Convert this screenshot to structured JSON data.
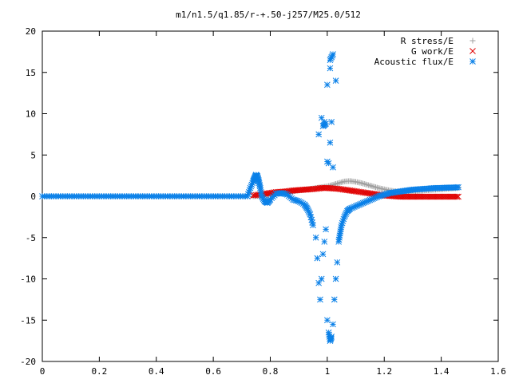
{
  "chart_data": {
    "type": "scatter",
    "title": "m1/n1.5/q1.85/r-+.50-j257/M25.0/512",
    "xlabel": "",
    "ylabel": "",
    "xlim": [
      0,
      1.6
    ],
    "ylim": [
      -20,
      20
    ],
    "x_ticks": [
      0,
      0.2,
      0.4,
      0.6,
      0.8,
      1,
      1.2,
      1.4,
      1.6
    ],
    "x_tick_labels": [
      "0",
      "0.2",
      "0.4",
      "0.6",
      "0.8",
      "1",
      "1.2",
      "1.4",
      "1.6"
    ],
    "y_ticks": [
      -20,
      -15,
      -10,
      -5,
      0,
      5,
      10,
      15,
      20
    ],
    "y_tick_labels": [
      "-20",
      "-15",
      "-10",
      "-5",
      "0",
      "5",
      "10",
      "15",
      "20"
    ],
    "grid": false,
    "legend_position": "top-right",
    "series": [
      {
        "name": "R stress/E",
        "marker": "plus",
        "color": "#a0a0a0",
        "x": [
          0.74,
          0.76,
          0.78,
          0.8,
          0.82,
          0.84,
          0.86,
          0.88,
          0.9,
          0.92,
          0.94,
          0.96,
          0.98,
          1.0,
          1.02,
          1.04,
          1.06,
          1.08,
          1.1,
          1.12,
          1.14,
          1.16,
          1.18,
          1.2,
          1.22,
          1.24,
          1.26,
          1.28,
          1.3,
          1.32,
          1.34,
          1.36,
          1.38,
          1.4,
          1.42,
          1.44,
          1.46
        ],
        "y": [
          0.0,
          0.05,
          0.1,
          0.2,
          0.3,
          0.4,
          0.5,
          0.6,
          0.7,
          0.8,
          0.9,
          1.0,
          1.1,
          1.2,
          1.4,
          1.6,
          1.8,
          1.85,
          1.75,
          1.6,
          1.4,
          1.2,
          1.0,
          0.85,
          0.7,
          0.6,
          0.55,
          0.55,
          0.6,
          0.65,
          0.7,
          0.75,
          0.8,
          0.85,
          0.9,
          0.95,
          1.0
        ]
      },
      {
        "name": "G work/E",
        "marker": "cross",
        "color": "#e00000",
        "x": [
          0.74,
          0.76,
          0.78,
          0.8,
          0.82,
          0.84,
          0.86,
          0.88,
          0.9,
          0.92,
          0.94,
          0.96,
          0.98,
          1.0,
          1.02,
          1.04,
          1.06,
          1.08,
          1.1,
          1.12,
          1.14,
          1.16,
          1.18,
          1.2,
          1.22,
          1.24,
          1.26,
          1.28,
          1.3,
          1.32,
          1.34,
          1.36,
          1.38,
          1.4,
          1.42,
          1.44,
          1.46
        ],
        "y": [
          0.1,
          0.2,
          0.3,
          0.4,
          0.5,
          0.55,
          0.6,
          0.7,
          0.75,
          0.8,
          0.85,
          0.9,
          1.0,
          1.0,
          0.95,
          0.9,
          0.8,
          0.7,
          0.6,
          0.5,
          0.4,
          0.3,
          0.2,
          0.1,
          0.05,
          0.0,
          -0.05,
          -0.05,
          -0.05,
          -0.05,
          -0.05,
          -0.05,
          -0.05,
          -0.05,
          -0.05,
          -0.05,
          -0.05
        ]
      },
      {
        "name": "Acoustic flux/E",
        "marker": "star",
        "color": "#0a80e8",
        "x": [
          0.72,
          0.73,
          0.74,
          0.745,
          0.75,
          0.755,
          0.76,
          0.765,
          0.77,
          0.78,
          0.79,
          0.8,
          0.82,
          0.84,
          0.86,
          0.88,
          0.9,
          0.92,
          0.93,
          0.94,
          0.95,
          0.96,
          0.965,
          0.97,
          0.975,
          0.98,
          0.985,
          0.99,
          0.995,
          1.0,
          1.005,
          1.01,
          1.015,
          1.02,
          1.025,
          1.03,
          1.035,
          1.04,
          1.045,
          1.05,
          1.06,
          1.07,
          1.08,
          1.1,
          1.12,
          1.14,
          1.16,
          1.18,
          1.2,
          1.22,
          1.24,
          1.26,
          1.28,
          1.3,
          1.32,
          1.34,
          1.36,
          1.38,
          1.4,
          1.42,
          1.44,
          1.46,
          0.99,
          1.0,
          1.01,
          1.02,
          0.97,
          0.98,
          1.01,
          1.03,
          0.985,
          0.995,
          1.005,
          1.015,
          1.0,
          1.01,
          1.02
        ],
        "y": [
          0.0,
          1.0,
          1.8,
          2.2,
          2.6,
          2.4,
          1.8,
          1.0,
          0.0,
          -0.6,
          -0.8,
          -0.4,
          0.3,
          0.4,
          0.2,
          -0.4,
          -0.6,
          -1.0,
          -1.5,
          -2.2,
          -3.5,
          -5.0,
          -7.5,
          -10.5,
          -12.5,
          -10.0,
          -7.0,
          -5.5,
          -4.0,
          -15.0,
          -16.5,
          -17.5,
          -17.0,
          -15.5,
          -12.5,
          -10.0,
          -8.0,
          -5.5,
          -4.5,
          -3.5,
          -2.5,
          -1.8,
          -1.5,
          -1.2,
          -0.9,
          -0.6,
          -0.3,
          0.0,
          0.2,
          0.4,
          0.5,
          0.6,
          0.7,
          0.8,
          0.85,
          0.9,
          0.95,
          1.0,
          1.0,
          1.05,
          1.05,
          1.1,
          9.0,
          13.5,
          16.5,
          17.2,
          7.5,
          9.5,
          15.5,
          14.0,
          8.5,
          8.8,
          4.0,
          9.0,
          4.2,
          6.5,
          3.5
        ]
      }
    ]
  }
}
